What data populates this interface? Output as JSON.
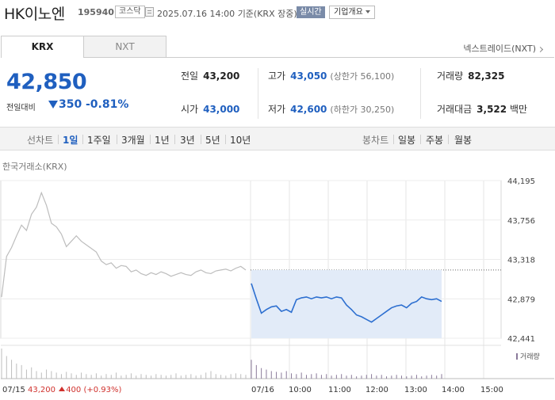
{
  "header": {
    "name": "HK이노엔",
    "code": "195940",
    "market": "코스닥",
    "timestamp": "2025.07.16 14:00",
    "basis": "기준(KRX 장중)",
    "realtime": "실시간",
    "company_info": "기업개요"
  },
  "tabs": [
    {
      "label": "KRX",
      "active": true
    },
    {
      "label": "NXT",
      "active": false
    }
  ],
  "nxt_link": "넥스트레이드(NXT)",
  "quote": {
    "price": "42,850",
    "change_label": "전일대비",
    "change": "350",
    "change_pct": "-0.81%",
    "direction": "down"
  },
  "stats": {
    "prev_label": "전일",
    "prev": "43,200",
    "open_label": "시가",
    "open": "43,000",
    "high_label": "고가",
    "high": "43,050",
    "upper_limit": "(상한가 56,100)",
    "low_label": "저가",
    "low": "42,600",
    "lower_limit": "(하한가 30,250)",
    "volume_label": "거래량",
    "volume": "82,325",
    "amount_label": "거래대금",
    "amount": "3,522",
    "amount_unit": "백만"
  },
  "toolbar": {
    "line_label": "선차트",
    "periods": [
      "1일",
      "1주일",
      "3개월",
      "1년",
      "3년",
      "5년",
      "10년"
    ],
    "selected_period": "1일",
    "candle_label": "봉차트",
    "candles": [
      "일봉",
      "주봉",
      "월봉"
    ]
  },
  "chart_source": "한국거래소(KRX)",
  "chart_data": {
    "type": "line",
    "y_ticks": [
      "44,195",
      "43,756",
      "43,318",
      "42,879",
      "42,441"
    ],
    "ylim": [
      42441,
      44195
    ],
    "x_labels": [
      "07/15",
      "07/16",
      "10:00",
      "11:00",
      "12:00",
      "13:00",
      "14:00",
      "15:00"
    ],
    "prev_close_line": 43200,
    "legend": "거래량",
    "prev_day_series": {
      "name": "07/15",
      "values": [
        42900,
        43350,
        43450,
        43580,
        43700,
        43640,
        43820,
        43900,
        44060,
        43920,
        43720,
        43680,
        43600,
        43460,
        43520,
        43580,
        43520,
        43480,
        43440,
        43400,
        43300,
        43260,
        43280,
        43220,
        43250,
        43240,
        43180,
        43200,
        43160,
        43140,
        43170,
        43150,
        43180,
        43160,
        43130,
        43150,
        43170,
        43150,
        43140,
        43180,
        43200,
        43170,
        43160,
        43190,
        43200,
        43210,
        43190,
        43220,
        43240,
        43200
      ]
    },
    "today_series": {
      "name": "07/16",
      "values": [
        43050,
        42880,
        42720,
        42760,
        42790,
        42800,
        42740,
        42760,
        42730,
        42870,
        42890,
        42900,
        42880,
        42900,
        42890,
        42900,
        42880,
        42900,
        42890,
        42810,
        42760,
        42700,
        42680,
        42650,
        42620,
        42660,
        42700,
        42740,
        42780,
        42800,
        42810,
        42780,
        42830,
        42850,
        42900,
        42880,
        42870,
        42880,
        42850
      ]
    },
    "prev_day_volume": [
      40,
      30,
      25,
      20,
      18,
      12,
      15,
      10,
      8,
      12,
      10,
      8,
      6,
      9,
      7,
      5,
      8,
      6,
      5,
      7,
      4,
      6,
      5,
      8,
      4,
      5,
      7,
      4,
      6,
      5,
      4,
      6,
      5,
      4,
      5,
      7,
      4,
      5,
      6,
      4,
      5,
      8,
      10,
      6,
      5,
      4,
      6,
      7,
      6,
      5
    ],
    "today_volume": [
      25,
      18,
      14,
      12,
      10,
      9,
      8,
      10,
      7,
      6,
      8,
      5,
      6,
      7,
      5,
      6,
      4,
      5,
      6,
      4,
      5,
      3,
      4,
      5,
      6,
      4,
      5,
      3,
      4,
      5,
      4,
      3,
      4,
      5,
      3,
      4,
      5,
      4,
      6
    ]
  }
}
